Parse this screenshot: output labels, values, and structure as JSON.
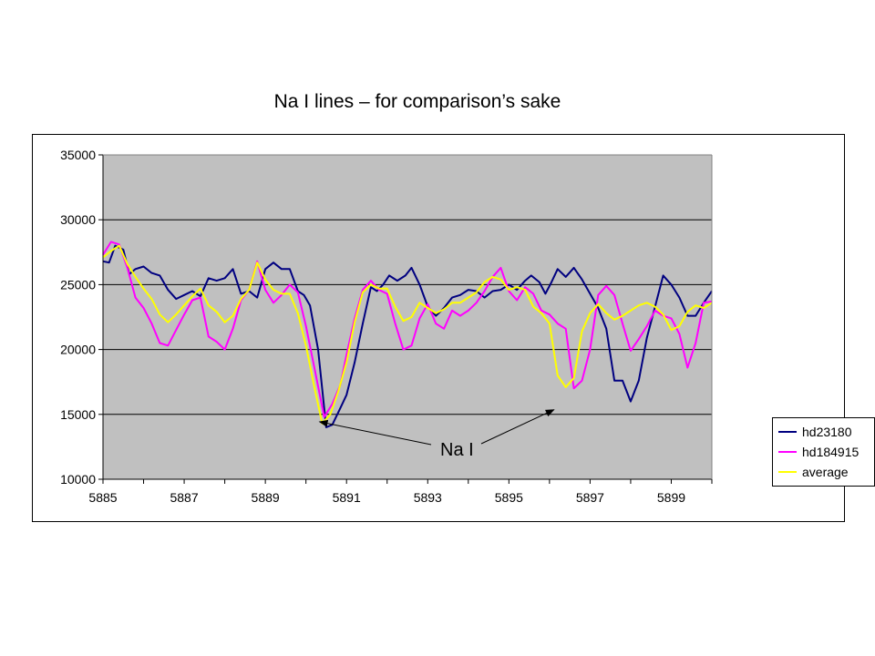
{
  "slide": {
    "title": "Na I lines – for comparison’s sake"
  },
  "chart_data": {
    "type": "line",
    "title": "",
    "xlabel": "",
    "ylabel": "",
    "xlim": [
      5885,
      5900
    ],
    "ylim": [
      10000,
      35000
    ],
    "x_ticks": [
      5885,
      5887,
      5889,
      5891,
      5893,
      5895,
      5897,
      5899
    ],
    "y_ticks": [
      10000,
      15000,
      20000,
      25000,
      30000,
      35000
    ],
    "grid": "horizontal",
    "plot_background": "#c0c0c0",
    "legend_position": "right",
    "annotation": {
      "text": "Na I",
      "points_to": [
        [
          5890.2,
          14500
        ],
        [
          5896.2,
          15500
        ]
      ]
    },
    "series": [
      {
        "name": "hd23180",
        "color": "#000080",
        "points": [
          [
            5885.0,
            26800
          ],
          [
            5885.15,
            26700
          ],
          [
            5885.3,
            28000
          ],
          [
            5885.5,
            27700
          ],
          [
            5885.65,
            25800
          ],
          [
            5885.8,
            26200
          ],
          [
            5886.0,
            26400
          ],
          [
            5886.2,
            25900
          ],
          [
            5886.4,
            25700
          ],
          [
            5886.6,
            24600
          ],
          [
            5886.8,
            23900
          ],
          [
            5887.0,
            24200
          ],
          [
            5887.2,
            24500
          ],
          [
            5887.4,
            24100
          ],
          [
            5887.6,
            25500
          ],
          [
            5887.8,
            25300
          ],
          [
            5888.0,
            25500
          ],
          [
            5888.2,
            26200
          ],
          [
            5888.4,
            24300
          ],
          [
            5888.6,
            24500
          ],
          [
            5888.8,
            24000
          ],
          [
            5889.0,
            26200
          ],
          [
            5889.2,
            26700
          ],
          [
            5889.4,
            26200
          ],
          [
            5889.6,
            26200
          ],
          [
            5889.8,
            24500
          ],
          [
            5889.95,
            24200
          ],
          [
            5890.1,
            23400
          ],
          [
            5890.3,
            20000
          ],
          [
            5890.5,
            14000
          ],
          [
            5890.65,
            14200
          ],
          [
            5890.85,
            15500
          ],
          [
            5891.0,
            16500
          ],
          [
            5891.2,
            19000
          ],
          [
            5891.4,
            22000
          ],
          [
            5891.6,
            24800
          ],
          [
            5891.75,
            24500
          ],
          [
            5891.9,
            25000
          ],
          [
            5892.05,
            25700
          ],
          [
            5892.25,
            25300
          ],
          [
            5892.45,
            25700
          ],
          [
            5892.6,
            26300
          ],
          [
            5892.8,
            25000
          ],
          [
            5893.0,
            23300
          ],
          [
            5893.2,
            22600
          ],
          [
            5893.4,
            23200
          ],
          [
            5893.6,
            24000
          ],
          [
            5893.8,
            24200
          ],
          [
            5894.0,
            24600
          ],
          [
            5894.2,
            24500
          ],
          [
            5894.4,
            24000
          ],
          [
            5894.6,
            24500
          ],
          [
            5894.8,
            24600
          ],
          [
            5895.0,
            25000
          ],
          [
            5895.2,
            24600
          ],
          [
            5895.4,
            25300
          ],
          [
            5895.55,
            25700
          ],
          [
            5895.75,
            25200
          ],
          [
            5895.9,
            24300
          ],
          [
            5896.05,
            25200
          ],
          [
            5896.2,
            26200
          ],
          [
            5896.4,
            25600
          ],
          [
            5896.6,
            26300
          ],
          [
            5896.8,
            25400
          ],
          [
            5897.0,
            24300
          ],
          [
            5897.2,
            23200
          ],
          [
            5897.4,
            21600
          ],
          [
            5897.6,
            17600
          ],
          [
            5897.8,
            17600
          ],
          [
            5898.0,
            16000
          ],
          [
            5898.2,
            17600
          ],
          [
            5898.4,
            20900
          ],
          [
            5898.6,
            23300
          ],
          [
            5898.8,
            25700
          ],
          [
            5899.0,
            25000
          ],
          [
            5899.2,
            24000
          ],
          [
            5899.4,
            22600
          ],
          [
            5899.6,
            22600
          ],
          [
            5899.8,
            23600
          ],
          [
            5900.0,
            24500
          ]
        ]
      },
      {
        "name": "hd184915",
        "color": "#ff00ff",
        "points": [
          [
            5885.0,
            27300
          ],
          [
            5885.2,
            28300
          ],
          [
            5885.4,
            28100
          ],
          [
            5885.6,
            26300
          ],
          [
            5885.8,
            24000
          ],
          [
            5886.0,
            23200
          ],
          [
            5886.2,
            22000
          ],
          [
            5886.4,
            20500
          ],
          [
            5886.6,
            20300
          ],
          [
            5886.8,
            21500
          ],
          [
            5887.0,
            22700
          ],
          [
            5887.2,
            23800
          ],
          [
            5887.4,
            24000
          ],
          [
            5887.6,
            21000
          ],
          [
            5887.8,
            20600
          ],
          [
            5888.0,
            20000
          ],
          [
            5888.2,
            21600
          ],
          [
            5888.4,
            23800
          ],
          [
            5888.6,
            24600
          ],
          [
            5888.8,
            26800
          ],
          [
            5889.0,
            24600
          ],
          [
            5889.2,
            23600
          ],
          [
            5889.4,
            24200
          ],
          [
            5889.6,
            25000
          ],
          [
            5889.8,
            24400
          ],
          [
            5890.0,
            21800
          ],
          [
            5890.2,
            18700
          ],
          [
            5890.45,
            14800
          ],
          [
            5890.65,
            15800
          ],
          [
            5890.85,
            17300
          ],
          [
            5891.0,
            19600
          ],
          [
            5891.2,
            22400
          ],
          [
            5891.4,
            24600
          ],
          [
            5891.6,
            25300
          ],
          [
            5891.8,
            24600
          ],
          [
            5892.0,
            24300
          ],
          [
            5892.2,
            22000
          ],
          [
            5892.4,
            20000
          ],
          [
            5892.6,
            20300
          ],
          [
            5892.8,
            22400
          ],
          [
            5893.0,
            23500
          ],
          [
            5893.2,
            22000
          ],
          [
            5893.4,
            21600
          ],
          [
            5893.6,
            23000
          ],
          [
            5893.8,
            22600
          ],
          [
            5894.0,
            23000
          ],
          [
            5894.2,
            23600
          ],
          [
            5894.4,
            24500
          ],
          [
            5894.6,
            25600
          ],
          [
            5894.8,
            26300
          ],
          [
            5895.0,
            24500
          ],
          [
            5895.2,
            23800
          ],
          [
            5895.4,
            24800
          ],
          [
            5895.6,
            24300
          ],
          [
            5895.8,
            23000
          ],
          [
            5896.0,
            22700
          ],
          [
            5896.2,
            22000
          ],
          [
            5896.4,
            21600
          ],
          [
            5896.6,
            17000
          ],
          [
            5896.8,
            17600
          ],
          [
            5897.0,
            20000
          ],
          [
            5897.2,
            24200
          ],
          [
            5897.4,
            24900
          ],
          [
            5897.6,
            24200
          ],
          [
            5897.8,
            22000
          ],
          [
            5898.0,
            19900
          ],
          [
            5898.2,
            20800
          ],
          [
            5898.4,
            21800
          ],
          [
            5898.6,
            23000
          ],
          [
            5898.8,
            22600
          ],
          [
            5899.0,
            22400
          ],
          [
            5899.2,
            21200
          ],
          [
            5899.4,
            18600
          ],
          [
            5899.6,
            20500
          ],
          [
            5899.8,
            23600
          ],
          [
            5900.0,
            23700
          ]
        ]
      },
      {
        "name": "average",
        "color": "#ffff00",
        "points": [
          [
            5885.0,
            27100
          ],
          [
            5885.2,
            27600
          ],
          [
            5885.4,
            28000
          ],
          [
            5885.6,
            26600
          ],
          [
            5885.8,
            25600
          ],
          [
            5886.0,
            24700
          ],
          [
            5886.2,
            23900
          ],
          [
            5886.4,
            22700
          ],
          [
            5886.6,
            22100
          ],
          [
            5886.8,
            22700
          ],
          [
            5887.0,
            23400
          ],
          [
            5887.2,
            24100
          ],
          [
            5887.4,
            24700
          ],
          [
            5887.6,
            23400
          ],
          [
            5887.8,
            22900
          ],
          [
            5888.0,
            22100
          ],
          [
            5888.2,
            22600
          ],
          [
            5888.4,
            23900
          ],
          [
            5888.6,
            24600
          ],
          [
            5888.8,
            26700
          ],
          [
            5889.0,
            25400
          ],
          [
            5889.2,
            24600
          ],
          [
            5889.4,
            24300
          ],
          [
            5889.6,
            24300
          ],
          [
            5889.8,
            22800
          ],
          [
            5890.0,
            20300
          ],
          [
            5890.2,
            17200
          ],
          [
            5890.4,
            14300
          ],
          [
            5890.6,
            15000
          ],
          [
            5890.8,
            16800
          ],
          [
            5891.0,
            19000
          ],
          [
            5891.2,
            22100
          ],
          [
            5891.4,
            24400
          ],
          [
            5891.6,
            25000
          ],
          [
            5891.8,
            24700
          ],
          [
            5892.0,
            24700
          ],
          [
            5892.2,
            23300
          ],
          [
            5892.4,
            22200
          ],
          [
            5892.6,
            22500
          ],
          [
            5892.8,
            23600
          ],
          [
            5893.0,
            23200
          ],
          [
            5893.2,
            22800
          ],
          [
            5893.4,
            23100
          ],
          [
            5893.6,
            23600
          ],
          [
            5893.8,
            23600
          ],
          [
            5894.0,
            24000
          ],
          [
            5894.2,
            24400
          ],
          [
            5894.4,
            25200
          ],
          [
            5894.6,
            25600
          ],
          [
            5894.8,
            25400
          ],
          [
            5895.0,
            24600
          ],
          [
            5895.2,
            24800
          ],
          [
            5895.4,
            24600
          ],
          [
            5895.6,
            23300
          ],
          [
            5895.8,
            22800
          ],
          [
            5896.0,
            22000
          ],
          [
            5896.2,
            18000
          ],
          [
            5896.4,
            17100
          ],
          [
            5896.6,
            17800
          ],
          [
            5896.8,
            21400
          ],
          [
            5897.0,
            22800
          ],
          [
            5897.2,
            23500
          ],
          [
            5897.4,
            22800
          ],
          [
            5897.6,
            22300
          ],
          [
            5897.8,
            22600
          ],
          [
            5898.0,
            23000
          ],
          [
            5898.2,
            23400
          ],
          [
            5898.4,
            23600
          ],
          [
            5898.6,
            23300
          ],
          [
            5898.8,
            22700
          ],
          [
            5899.0,
            21500
          ],
          [
            5899.2,
            21800
          ],
          [
            5899.4,
            22900
          ],
          [
            5899.6,
            23400
          ],
          [
            5899.8,
            23200
          ],
          [
            5900.0,
            23600
          ]
        ]
      }
    ]
  }
}
